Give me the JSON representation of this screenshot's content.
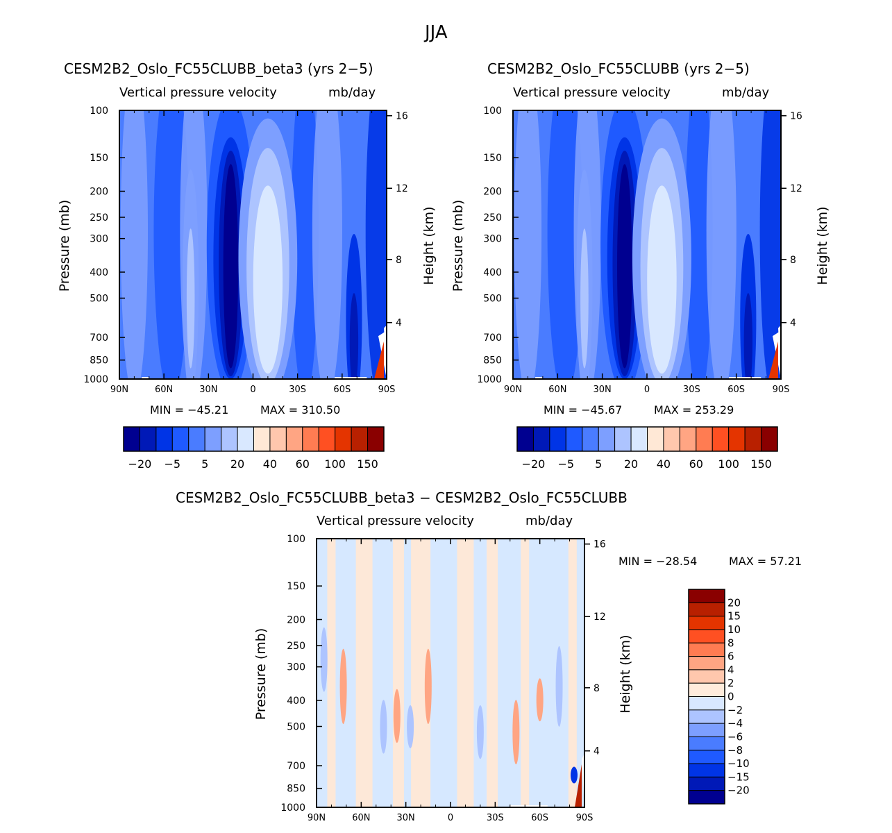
{
  "page_title": "JJA",
  "chart_data": [
    {
      "id": "p1",
      "type": "contour",
      "title": "CESM2B2_Oslo_FC55CLUBB_beta3 (yrs 2−5)",
      "subtitle_left": "Vertical pressure velocity",
      "subtitle_right": "mb/day",
      "ylabel": "Pressure (mb)",
      "ylabel_right": "Height (km)",
      "xticks": [
        "90N",
        "60N",
        "30N",
        "0",
        "30S",
        "60S",
        "90S"
      ],
      "yticks": [
        "100",
        "150",
        "200",
        "250",
        "300",
        "400",
        "500",
        "700",
        "850",
        "1000"
      ],
      "ylim": [
        1000,
        100
      ],
      "height_ticks": [
        "16",
        "12",
        "8",
        "4"
      ],
      "min_label": "MIN = −45.21",
      "max_label": "MAX = 310.50",
      "colorbar_labels": [
        "−20",
        "−5",
        "5",
        "20",
        "40",
        "60",
        "100",
        "150"
      ],
      "features": [
        {
          "lat": 15,
          "strength": -45
        },
        {
          "lat": -10,
          "strength": 40
        },
        {
          "lat": -68,
          "strength": -20
        }
      ]
    },
    {
      "id": "p2",
      "type": "contour",
      "title": "CESM2B2_Oslo_FC55CLUBB (yrs 2−5)",
      "subtitle_left": "Vertical pressure velocity",
      "subtitle_right": "mb/day",
      "ylabel": "Pressure (mb)",
      "ylabel_right": "Height (km)",
      "xticks": [
        "90N",
        "60N",
        "30N",
        "0",
        "30S",
        "60S",
        "90S"
      ],
      "yticks": [
        "100",
        "150",
        "200",
        "250",
        "300",
        "400",
        "500",
        "700",
        "850",
        "1000"
      ],
      "ylim": [
        1000,
        100
      ],
      "height_ticks": [
        "16",
        "12",
        "8",
        "4"
      ],
      "min_label": "MIN = −45.67",
      "max_label": "MAX = 253.29",
      "colorbar_labels": [
        "−20",
        "−5",
        "5",
        "20",
        "40",
        "60",
        "100",
        "150"
      ],
      "features": [
        {
          "lat": 15,
          "strength": -46
        },
        {
          "lat": -10,
          "strength": 38
        },
        {
          "lat": -68,
          "strength": -20
        }
      ]
    },
    {
      "id": "p3",
      "type": "contour",
      "title": "CESM2B2_Oslo_FC55CLUBB_beta3 − CESM2B2_Oslo_FC55CLUBB",
      "subtitle_left": "Vertical pressure velocity",
      "subtitle_right": "mb/day",
      "ylabel": "Pressure (mb)",
      "ylabel_right": "Height (km)",
      "xticks": [
        "90N",
        "60N",
        "30N",
        "0",
        "30S",
        "60S",
        "90S"
      ],
      "yticks": [
        "100",
        "150",
        "200",
        "250",
        "300",
        "400",
        "500",
        "700",
        "850",
        "1000"
      ],
      "ylim": [
        1000,
        100
      ],
      "height_ticks": [
        "16",
        "12",
        "8",
        "4"
      ],
      "min_label": "MIN = −28.54",
      "max_label": "MAX =  57.21",
      "colorbar_labels": [
        "20",
        "15",
        "10",
        "8",
        "6",
        "4",
        "2",
        "0",
        "−2",
        "−4",
        "−6",
        "−8",
        "−10",
        "−15",
        "−20"
      ]
    }
  ],
  "colors": {
    "levels_16": [
      "#000090",
      "#0019b7",
      "#0034e6",
      "#1f5aff",
      "#4a7cff",
      "#7d9fff",
      "#adc4ff",
      "#d9e8ff",
      "#ffe8d6",
      "#ffc7ad",
      "#ffa583",
      "#ff7c52",
      "#ff5022",
      "#e43400",
      "#b82000",
      "#8a0000"
    ],
    "levels_18": [
      "#8a0000",
      "#b82000",
      "#e43400",
      "#ff5022",
      "#ff7c52",
      "#ffa583",
      "#ffc7ad",
      "#ffecdc",
      "#d9e8ff",
      "#adc4ff",
      "#7d9fff",
      "#4a7cff",
      "#1f5aff",
      "#0034e6",
      "#0019b7",
      "#000090"
    ],
    "background_blue": "#4a7cff",
    "diff_bg_light": "#d6e8ff",
    "diff_bg_peach": "#fde8d8"
  }
}
